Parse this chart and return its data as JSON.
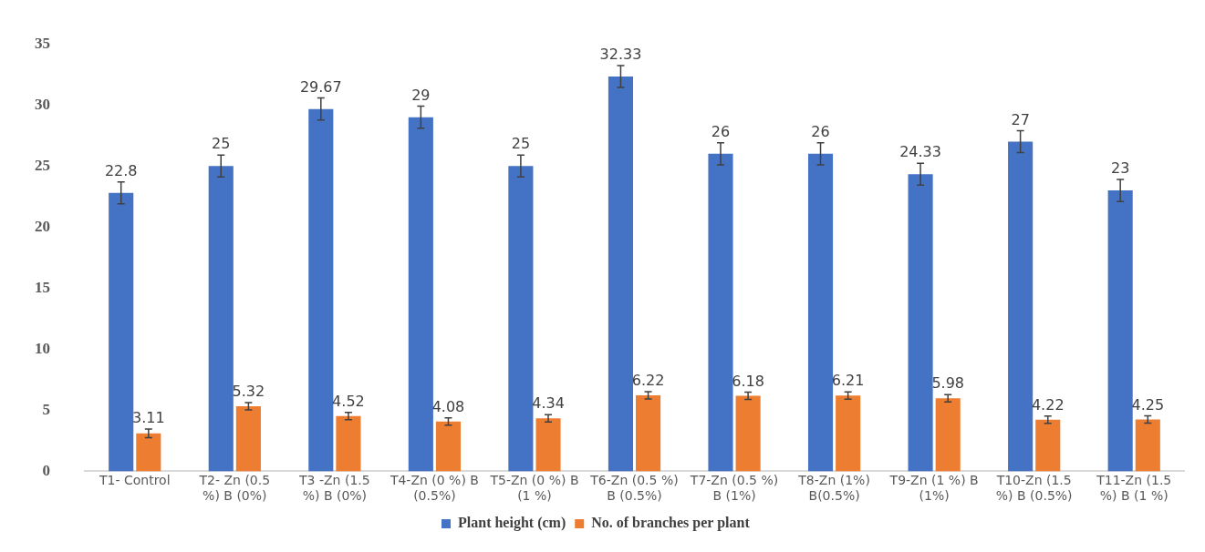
{
  "chart_data": {
    "type": "bar",
    "categories": [
      "T1- Control",
      "T2- Zn (0.5 %) B (0%)",
      "T3 -Zn (1.5 %) B (0%)",
      "T4-Zn (0 %) B (0.5%)",
      "T5-Zn (0 %) B (1 %)",
      "T6-Zn (0.5 %) B (0.5%)",
      "T7-Zn (0.5 %) B (1%)",
      "T8-Zn (1%) B(0.5%)",
      "T9-Zn (1 %) B (1%)",
      "T10-Zn (1.5 %) B (0.5%)",
      "T11-Zn (1.5 %) B (1 %)"
    ],
    "series": [
      {
        "name": "Plant height (cm)",
        "color": "#4472c4",
        "values": [
          22.8,
          25,
          29.67,
          29,
          25,
          32.33,
          26,
          26,
          24.33,
          27,
          23
        ],
        "errors": [
          0.9,
          0.9,
          0.9,
          0.9,
          0.9,
          0.9,
          0.9,
          0.9,
          0.9,
          0.9,
          0.9
        ]
      },
      {
        "name": "No. of branches per plant",
        "color": "#ed7d31",
        "values": [
          3.11,
          5.32,
          4.52,
          4.08,
          4.34,
          6.22,
          6.18,
          6.21,
          5.98,
          4.22,
          4.25
        ],
        "errors": [
          0.35,
          0.3,
          0.3,
          0.3,
          0.3,
          0.3,
          0.3,
          0.3,
          0.3,
          0.3,
          0.3
        ]
      }
    ],
    "ylim": [
      0,
      35
    ],
    "yticks": [
      0,
      5,
      10,
      15,
      20,
      25,
      30,
      35
    ],
    "grid": false,
    "legend": "bottom",
    "data_labels": true
  }
}
